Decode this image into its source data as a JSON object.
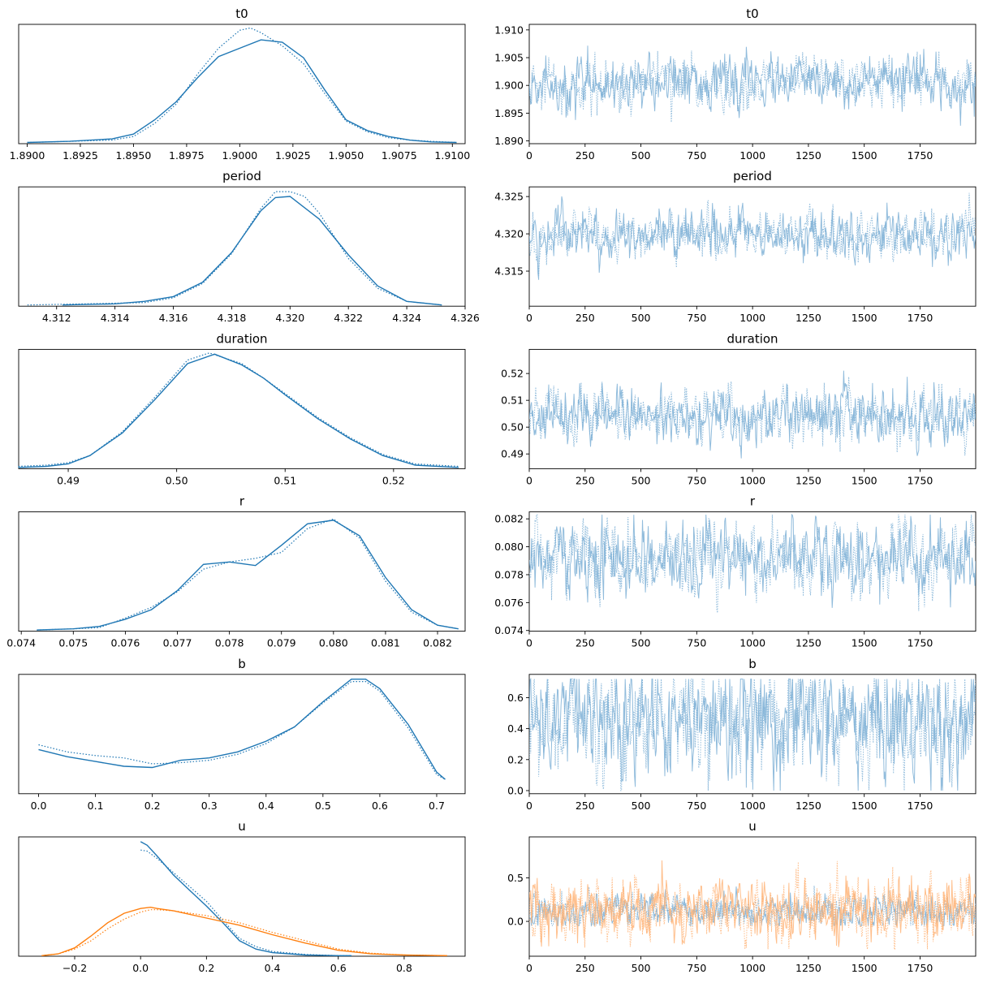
{
  "colors": {
    "c0": "#1f77b4",
    "c1": "#ff7f0e",
    "trace_blue": "#7eb0d6",
    "trace_orange": "#ffb478"
  },
  "chart_data": [
    {
      "type": "line",
      "title": "t0",
      "kind": "kde",
      "xlim": [
        1.8896,
        1.9106
      ],
      "ylim": [
        0,
        1
      ],
      "grid": false,
      "xticks": [
        1.89,
        1.8925,
        1.895,
        1.8975,
        1.9,
        1.9025,
        1.905,
        1.9075,
        1.91
      ],
      "xtick_labels": [
        "1.8900",
        "1.8925",
        "1.8950",
        "1.8975",
        "1.9000",
        "1.9025",
        "1.9050",
        "1.9075",
        "1.9100"
      ],
      "yticks": [],
      "ytick_labels": [],
      "series": [
        {
          "color": "c0",
          "dash": "solid",
          "x": [
            1.89,
            1.892,
            1.894,
            1.895,
            1.896,
            1.897,
            1.898,
            1.899,
            1.9,
            1.901,
            1.902,
            1.903,
            1.904,
            1.905,
            1.906,
            1.907,
            1.908,
            1.909,
            1.9102
          ],
          "y": [
            0.01,
            0.02,
            0.04,
            0.08,
            0.2,
            0.35,
            0.55,
            0.73,
            0.8,
            0.87,
            0.85,
            0.72,
            0.45,
            0.2,
            0.11,
            0.06,
            0.03,
            0.015,
            0.01
          ]
        },
        {
          "color": "c0",
          "dash": "dotted",
          "x": [
            1.89,
            1.892,
            1.894,
            1.895,
            1.896,
            1.897,
            1.898,
            1.899,
            1.9,
            1.9005,
            1.901,
            1.902,
            1.903,
            1.904,
            1.905,
            1.906,
            1.907,
            1.908,
            1.909,
            1.9102
          ],
          "y": [
            0.01,
            0.02,
            0.03,
            0.06,
            0.17,
            0.33,
            0.58,
            0.8,
            0.95,
            0.97,
            0.93,
            0.82,
            0.67,
            0.42,
            0.19,
            0.1,
            0.05,
            0.03,
            0.02,
            0.01
          ]
        }
      ]
    },
    {
      "type": "line",
      "title": "t0",
      "kind": "trace",
      "xlim": [
        0,
        1999
      ],
      "ylim": [
        1.8895,
        1.911
      ],
      "grid": false,
      "xticks": [
        0,
        250,
        500,
        750,
        1000,
        1250,
        1500,
        1750
      ],
      "xtick_labels": [
        "0",
        "250",
        "500",
        "750",
        "1000",
        "1250",
        "1500",
        "1750"
      ],
      "yticks": [
        1.89,
        1.895,
        1.9,
        1.905,
        1.91
      ],
      "ytick_labels": [
        "1.890",
        "1.895",
        "1.900",
        "1.905",
        "1.910"
      ],
      "trace_series": [
        {
          "color": "trace_blue",
          "center": 1.9005,
          "sd": 0.0023,
          "min": 1.8902,
          "max": 1.9104
        }
      ]
    },
    {
      "type": "line",
      "title": "period",
      "kind": "kde",
      "xlim": [
        4.3107,
        4.326
      ],
      "ylim": [
        0,
        1
      ],
      "grid": false,
      "xticks": [
        4.312,
        4.314,
        4.316,
        4.318,
        4.32,
        4.322,
        4.324,
        4.326
      ],
      "xtick_labels": [
        "4.312",
        "4.314",
        "4.316",
        "4.318",
        "4.320",
        "4.322",
        "4.324",
        "4.326"
      ],
      "yticks": [],
      "ytick_labels": [],
      "series": [
        {
          "color": "c0",
          "dash": "solid",
          "x": [
            4.3122,
            4.314,
            4.315,
            4.316,
            4.317,
            4.318,
            4.319,
            4.3195,
            4.32,
            4.321,
            4.322,
            4.323,
            4.324,
            4.3252
          ],
          "y": [
            0.01,
            0.02,
            0.04,
            0.08,
            0.2,
            0.45,
            0.8,
            0.91,
            0.92,
            0.73,
            0.43,
            0.17,
            0.04,
            0.01
          ]
        },
        {
          "color": "c0",
          "dash": "dotted",
          "x": [
            4.311,
            4.313,
            4.315,
            4.316,
            4.317,
            4.318,
            4.319,
            4.3195,
            4.32,
            4.3205,
            4.321,
            4.322,
            4.323,
            4.324,
            4.3252
          ],
          "y": [
            0.01,
            0.02,
            0.03,
            0.07,
            0.19,
            0.44,
            0.82,
            0.96,
            0.96,
            0.92,
            0.78,
            0.4,
            0.15,
            0.04,
            0.01
          ]
        }
      ]
    },
    {
      "type": "line",
      "title": "period",
      "kind": "trace",
      "xlim": [
        0,
        1999
      ],
      "ylim": [
        4.3103,
        4.3263
      ],
      "grid": false,
      "xticks": [
        0,
        250,
        500,
        750,
        1000,
        1250,
        1500,
        1750
      ],
      "xtick_labels": [
        "0",
        "250",
        "500",
        "750",
        "1000",
        "1250",
        "1500",
        "1750"
      ],
      "yticks": [
        4.315,
        4.32,
        4.325
      ],
      "ytick_labels": [
        "4.315",
        "4.320",
        "4.325"
      ],
      "trace_series": [
        {
          "color": "trace_blue",
          "center": 4.3198,
          "sd": 0.0016,
          "min": 4.3107,
          "max": 4.3256
        }
      ]
    },
    {
      "type": "line",
      "title": "duration",
      "kind": "kde",
      "xlim": [
        0.48543,
        0.5266
      ],
      "ylim": [
        0,
        1
      ],
      "grid": false,
      "xticks": [
        0.49,
        0.5,
        0.51,
        0.52
      ],
      "xtick_labels": [
        "0.49",
        "0.50",
        "0.51",
        "0.52"
      ],
      "yticks": [],
      "ytick_labels": [],
      "series": [
        {
          "color": "c0",
          "dash": "solid",
          "x": [
            0.4854,
            0.488,
            0.49,
            0.492,
            0.495,
            0.498,
            0.501,
            0.5035,
            0.506,
            0.508,
            0.51,
            0.513,
            0.516,
            0.519,
            0.522,
            0.526
          ],
          "y": [
            0.01,
            0.02,
            0.04,
            0.11,
            0.3,
            0.58,
            0.88,
            0.96,
            0.87,
            0.76,
            0.62,
            0.42,
            0.25,
            0.11,
            0.03,
            0.01
          ]
        },
        {
          "color": "c0",
          "dash": "dotted",
          "x": [
            0.4854,
            0.488,
            0.49,
            0.492,
            0.495,
            0.498,
            0.501,
            0.503,
            0.506,
            0.508,
            0.51,
            0.513,
            0.516,
            0.519,
            0.522,
            0.526
          ],
          "y": [
            0.02,
            0.03,
            0.05,
            0.11,
            0.31,
            0.6,
            0.91,
            0.97,
            0.88,
            0.76,
            0.63,
            0.43,
            0.26,
            0.12,
            0.04,
            0.02
          ]
        }
      ]
    },
    {
      "type": "line",
      "title": "duration",
      "kind": "trace",
      "xlim": [
        0,
        1999
      ],
      "ylim": [
        0.4845,
        0.529
      ],
      "grid": false,
      "xticks": [
        0,
        250,
        500,
        750,
        1000,
        1250,
        1500,
        1750
      ],
      "xtick_labels": [
        "0",
        "250",
        "500",
        "750",
        "1000",
        "1250",
        "1500",
        "1750"
      ],
      "yticks": [
        0.49,
        0.5,
        0.51,
        0.52
      ],
      "ytick_labels": [
        "0.49",
        "0.50",
        "0.51",
        "0.52"
      ],
      "trace_series": [
        {
          "color": "trace_blue",
          "center": 0.5045,
          "sd": 0.0052,
          "min": 0.4855,
          "max": 0.5275
        }
      ]
    },
    {
      "type": "line",
      "title": "r",
      "kind": "kde",
      "xlim": [
        0.07395,
        0.08253
      ],
      "ylim": [
        0,
        1
      ],
      "grid": false,
      "xticks": [
        0.074,
        0.075,
        0.076,
        0.077,
        0.078,
        0.079,
        0.08,
        0.081,
        0.082
      ],
      "xtick_labels": [
        "0.074",
        "0.075",
        "0.076",
        "0.077",
        "0.078",
        "0.079",
        "0.080",
        "0.081",
        "0.082"
      ],
      "yticks": [],
      "ytick_labels": [],
      "series": [
        {
          "color": "c0",
          "dash": "solid",
          "x": [
            0.0743,
            0.075,
            0.0755,
            0.076,
            0.0765,
            0.077,
            0.0775,
            0.078,
            0.0785,
            0.079,
            0.0795,
            0.08,
            0.0805,
            0.081,
            0.0815,
            0.082,
            0.0824
          ],
          "y": [
            0.01,
            0.02,
            0.04,
            0.1,
            0.18,
            0.34,
            0.56,
            0.58,
            0.55,
            0.72,
            0.9,
            0.93,
            0.8,
            0.45,
            0.18,
            0.05,
            0.02
          ]
        },
        {
          "color": "c0",
          "dash": "dotted",
          "x": [
            0.0743,
            0.075,
            0.0755,
            0.076,
            0.0765,
            0.077,
            0.0775,
            0.078,
            0.0785,
            0.079,
            0.0795,
            0.08,
            0.0805,
            0.081,
            0.0815,
            0.082,
            0.0824
          ],
          "y": [
            0.01,
            0.02,
            0.03,
            0.11,
            0.2,
            0.33,
            0.52,
            0.58,
            0.61,
            0.66,
            0.86,
            0.94,
            0.78,
            0.42,
            0.16,
            0.05,
            0.02
          ]
        }
      ]
    },
    {
      "type": "line",
      "title": "r",
      "kind": "trace",
      "xlim": [
        0,
        1999
      ],
      "ylim": [
        0.07395,
        0.0825
      ],
      "grid": false,
      "xticks": [
        0,
        250,
        500,
        750,
        1000,
        1250,
        1500,
        1750
      ],
      "xtick_labels": [
        "0",
        "250",
        "500",
        "750",
        "1000",
        "1250",
        "1500",
        "1750"
      ],
      "yticks": [
        0.074,
        0.076,
        0.078,
        0.08,
        0.082
      ],
      "ytick_labels": [
        "0.074",
        "0.076",
        "0.078",
        "0.080",
        "0.082"
      ],
      "trace_series": [
        {
          "color": "trace_blue",
          "center": 0.0792,
          "sd": 0.0013,
          "min": 0.0744,
          "max": 0.0823
        }
      ]
    },
    {
      "type": "line",
      "title": "b",
      "kind": "kde",
      "xlim": [
        -0.035,
        0.75
      ],
      "ylim": [
        0,
        1
      ],
      "grid": false,
      "xticks": [
        0,
        0.1,
        0.2,
        0.3,
        0.4,
        0.5,
        0.6,
        0.7
      ],
      "xtick_labels": [
        "0.0",
        "0.1",
        "0.2",
        "0.3",
        "0.4",
        "0.5",
        "0.6",
        "0.7"
      ],
      "yticks": [],
      "ytick_labels": [],
      "series": [
        {
          "color": "c0",
          "dash": "solid",
          "x": [
            0.0,
            0.05,
            0.1,
            0.15,
            0.2,
            0.25,
            0.3,
            0.35,
            0.4,
            0.45,
            0.5,
            0.55,
            0.575,
            0.6,
            0.65,
            0.7,
            0.715
          ],
          "y": [
            0.37,
            0.31,
            0.27,
            0.23,
            0.22,
            0.28,
            0.3,
            0.35,
            0.44,
            0.56,
            0.77,
            0.96,
            0.96,
            0.88,
            0.58,
            0.18,
            0.12
          ]
        },
        {
          "color": "c0",
          "dash": "dotted",
          "x": [
            0.0,
            0.05,
            0.1,
            0.15,
            0.2,
            0.25,
            0.3,
            0.35,
            0.4,
            0.45,
            0.5,
            0.55,
            0.575,
            0.6,
            0.65,
            0.7,
            0.715
          ],
          "y": [
            0.41,
            0.35,
            0.32,
            0.3,
            0.25,
            0.26,
            0.28,
            0.33,
            0.42,
            0.56,
            0.76,
            0.94,
            0.94,
            0.86,
            0.55,
            0.16,
            0.12
          ]
        }
      ]
    },
    {
      "type": "line",
      "title": "b",
      "kind": "trace",
      "xlim": [
        0,
        1999
      ],
      "ylim": [
        -0.02,
        0.75
      ],
      "grid": false,
      "xticks": [
        0,
        250,
        500,
        750,
        1000,
        1250,
        1500,
        1750
      ],
      "xtick_labels": [
        "0",
        "250",
        "500",
        "750",
        "1000",
        "1250",
        "1500",
        "1750"
      ],
      "yticks": [
        0.0,
        0.2,
        0.4,
        0.6
      ],
      "ytick_labels": [
        "0.0",
        "0.2",
        "0.4",
        "0.6"
      ],
      "trace_series": [
        {
          "color": "trace_blue",
          "center": 0.45,
          "sd": 0.19,
          "min": 0.0,
          "max": 0.72
        }
      ]
    },
    {
      "type": "line",
      "title": "u",
      "kind": "kde",
      "xlim": [
        -0.37,
        0.985
      ],
      "ylim": [
        0,
        1
      ],
      "grid": false,
      "xticks": [
        -0.2,
        0.0,
        0.2,
        0.4,
        0.6,
        0.8
      ],
      "xtick_labels": [
        "−0.2",
        "0.0",
        "0.2",
        "0.4",
        "0.6",
        "0.8"
      ],
      "yticks": [],
      "ytick_labels": [],
      "series": [
        {
          "color": "c0",
          "dash": "solid",
          "x": [
            0.0,
            0.02,
            0.05,
            0.1,
            0.15,
            0.2,
            0.25,
            0.3,
            0.35,
            0.4,
            0.5,
            0.6,
            0.64
          ],
          "y": [
            0.96,
            0.93,
            0.84,
            0.68,
            0.55,
            0.42,
            0.28,
            0.13,
            0.06,
            0.03,
            0.01,
            0.005,
            0.005
          ]
        },
        {
          "color": "c0",
          "dash": "dotted",
          "x": [
            0.0,
            0.02,
            0.05,
            0.1,
            0.15,
            0.2,
            0.25,
            0.3,
            0.35,
            0.4,
            0.5,
            0.6,
            0.64
          ],
          "y": [
            0.89,
            0.88,
            0.82,
            0.7,
            0.58,
            0.46,
            0.3,
            0.15,
            0.08,
            0.04,
            0.015,
            0.005,
            0.005
          ]
        },
        {
          "color": "c1",
          "dash": "solid",
          "x": [
            -0.3,
            -0.25,
            -0.2,
            -0.15,
            -0.1,
            -0.05,
            0.0,
            0.03,
            0.05,
            0.1,
            0.2,
            0.3,
            0.4,
            0.5,
            0.6,
            0.7,
            0.8,
            0.93
          ],
          "y": [
            0.005,
            0.02,
            0.07,
            0.17,
            0.28,
            0.36,
            0.4,
            0.41,
            0.4,
            0.38,
            0.32,
            0.26,
            0.18,
            0.11,
            0.05,
            0.02,
            0.01,
            0.005
          ]
        },
        {
          "color": "c1",
          "dash": "dotted",
          "x": [
            -0.3,
            -0.25,
            -0.2,
            -0.15,
            -0.1,
            -0.05,
            0.0,
            0.03,
            0.05,
            0.1,
            0.2,
            0.3,
            0.4,
            0.5,
            0.6,
            0.7,
            0.8,
            0.93
          ],
          "y": [
            0.005,
            0.02,
            0.06,
            0.13,
            0.23,
            0.31,
            0.37,
            0.39,
            0.39,
            0.38,
            0.34,
            0.28,
            0.2,
            0.13,
            0.06,
            0.025,
            0.01,
            0.005
          ]
        }
      ]
    },
    {
      "type": "line",
      "title": "u",
      "kind": "trace",
      "xlim": [
        0,
        1999
      ],
      "ylim": [
        -0.4,
        0.97
      ],
      "grid": false,
      "xticks": [
        0,
        250,
        500,
        750,
        1000,
        1250,
        1500,
        1750
      ],
      "xtick_labels": [
        "0",
        "250",
        "500",
        "750",
        "1000",
        "1250",
        "1500",
        "1750"
      ],
      "yticks": [
        0.0,
        0.5
      ],
      "ytick_labels": [
        "0.0",
        "0.5"
      ],
      "trace_series": [
        {
          "color": "trace_blue",
          "center": 0.12,
          "sd": 0.09,
          "min": -0.05,
          "max": 0.62
        },
        {
          "color": "trace_orange",
          "center": 0.13,
          "sd": 0.18,
          "min": -0.32,
          "max": 0.92
        }
      ]
    }
  ]
}
